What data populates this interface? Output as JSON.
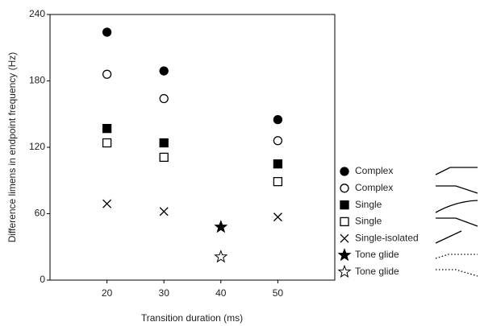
{
  "chart_data": {
    "type": "scatter",
    "x_label": "Transition duration (ms)",
    "y_label": "Difference limens in endpoint frequency (Hz)",
    "xlim": [
      10,
      60
    ],
    "xticks": [
      20,
      30,
      40,
      50
    ],
    "ylim": [
      0,
      240
    ],
    "yticks": [
      0,
      60,
      120,
      180,
      240
    ],
    "color": "#000000",
    "series": [
      {
        "name": "Complex",
        "marker": "circle",
        "filled": true,
        "x": [
          20,
          30,
          50
        ],
        "values": [
          224,
          189,
          145
        ]
      },
      {
        "name": "Complex",
        "marker": "circle",
        "filled": false,
        "x": [
          20,
          30,
          50
        ],
        "values": [
          186,
          164,
          126
        ]
      },
      {
        "name": "Single",
        "marker": "square",
        "filled": true,
        "x": [
          20,
          30,
          50
        ],
        "values": [
          137,
          124,
          105
        ]
      },
      {
        "name": "Single",
        "marker": "square",
        "filled": false,
        "x": [
          20,
          30,
          50
        ],
        "values": [
          124,
          111,
          89
        ]
      },
      {
        "name": "Single-isolated",
        "marker": "x",
        "filled": false,
        "x": [
          20,
          30,
          50
        ],
        "values": [
          69,
          62,
          57
        ]
      },
      {
        "name": "Tone glide",
        "marker": "star",
        "filled": true,
        "x": [
          40
        ],
        "values": [
          48
        ]
      },
      {
        "name": "Tone glide",
        "marker": "star",
        "filled": false,
        "x": [
          40
        ],
        "values": [
          21
        ]
      }
    ]
  }
}
